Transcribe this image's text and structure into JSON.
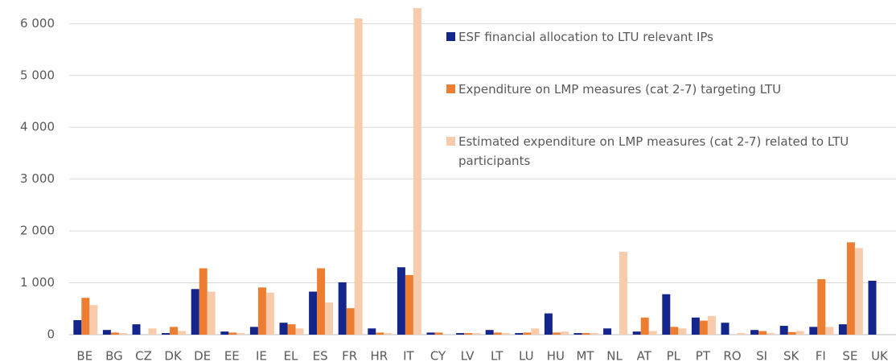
{
  "chart_data": {
    "type": "bar",
    "categories": [
      "BE",
      "BG",
      "CZ",
      "DK",
      "DE",
      "EE",
      "IE",
      "EL",
      "ES",
      "FR",
      "HR",
      "IT",
      "CY",
      "LV",
      "LT",
      "LU",
      "HU",
      "MT",
      "NL",
      "AT",
      "PL",
      "PT",
      "RO",
      "SI",
      "SK",
      "FI",
      "SE",
      "UK"
    ],
    "series": [
      {
        "name": "ESF financial allocation to LTU relevant IPs",
        "color": "#14258c",
        "values": [
          280,
          90,
          200,
          30,
          880,
          60,
          150,
          230,
          830,
          1010,
          120,
          1300,
          40,
          30,
          90,
          30,
          410,
          30,
          120,
          60,
          780,
          330,
          230,
          90,
          170,
          150,
          200,
          1040
        ]
      },
      {
        "name": "Expenditure on LMP measures (cat 2-7) targeting LTU",
        "color": "#ed7d31",
        "values": [
          710,
          40,
          0,
          150,
          1280,
          40,
          910,
          200,
          1280,
          510,
          40,
          1150,
          40,
          30,
          40,
          40,
          40,
          30,
          0,
          330,
          150,
          270,
          0,
          70,
          50,
          1070,
          1780,
          null
        ]
      },
      {
        "name": "Estimated expenditure on LMP measures (cat 2-7) related to LTU participants",
        "color": "#f8cbad",
        "values": [
          570,
          30,
          120,
          70,
          830,
          30,
          810,
          120,
          620,
          6100,
          30,
          6300,
          0,
          30,
          30,
          120,
          60,
          30,
          1600,
          70,
          120,
          360,
          30,
          30,
          70,
          150,
          1670,
          null
        ]
      }
    ],
    "ylim": [
      0,
      6300
    ],
    "yticks": [
      0,
      {
        "value": 1000,
        "label": "1 000"
      },
      {
        "value": 2000,
        "label": "2 000"
      },
      {
        "value": 3000,
        "label": "3 000"
      },
      {
        "value": 4000,
        "label": "4 000"
      },
      {
        "value": 5000,
        "label": "5 000"
      },
      {
        "value": 6000,
        "label": "6 000"
      }
    ],
    "grid": true
  }
}
